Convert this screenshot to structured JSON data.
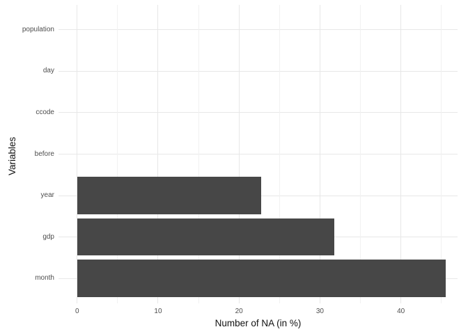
{
  "chart_data": {
    "type": "bar",
    "orientation": "horizontal",
    "title": "",
    "xlabel": "Number of NA (in %)",
    "ylabel": "Variables",
    "categories_top_to_bottom": [
      "population",
      "day",
      "ccode",
      "before",
      "year",
      "gdp",
      "month"
    ],
    "values_top_to_bottom": [
      0,
      0,
      0,
      0,
      22.7,
      31.8,
      45.5
    ],
    "x_ticks_major": [
      0,
      10,
      20,
      30,
      40
    ],
    "x_ticks_minor": [
      5,
      15,
      25,
      35,
      45
    ],
    "xlim": [
      -2.3,
      47.0
    ],
    "grid": "major-and-minor",
    "legend": "none",
    "colors": {
      "bar_fill": "#474747",
      "grid_major": "#e7e7e7",
      "grid_minor": "#f1f1f1",
      "axis_text": "#4d4d4d",
      "axis_title": "#111111",
      "background": "#ffffff"
    }
  }
}
